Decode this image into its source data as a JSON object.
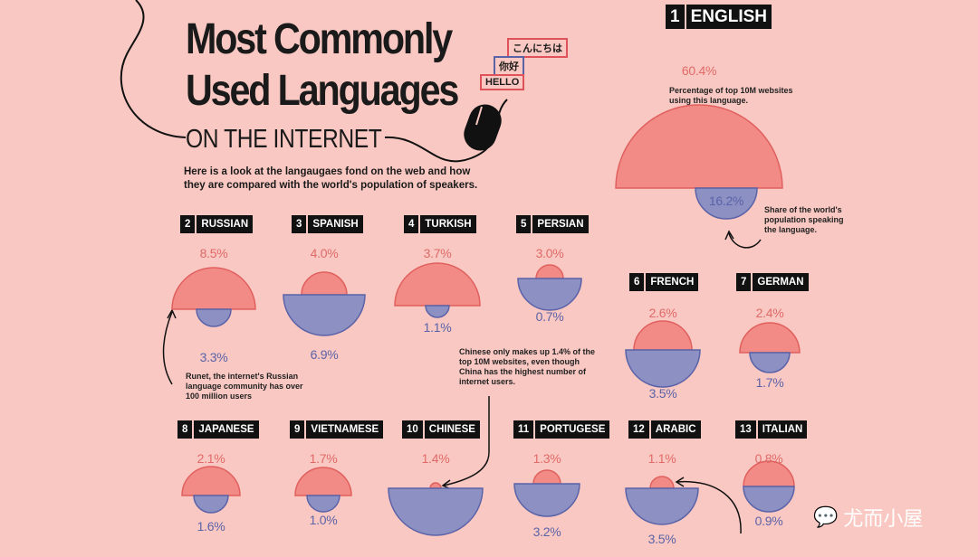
{
  "title": {
    "line1": "Most Commonly",
    "line2": "Used Languages",
    "line3": "ON THE INTERNET"
  },
  "bubbles": [
    "こんにちは",
    "你好",
    "HELLO"
  ],
  "subtitle": "Here is a look at the langaugaes fond on the web and how they are compared with the world's population of speakers.",
  "notes": {
    "english_web": "Percentage of top 10M websites using this language.",
    "english_pop": "Share of the world's population speaking the language.",
    "russian": "Runet, the internet's Russian language community has over 100 million users",
    "chinese": "Chinese only makes up 1.4% of the top 10M websites, even though China has the highest number of internet users."
  },
  "watermark": "尤而小屋",
  "colors": {
    "background": "#f9c8c2",
    "websites": "#f28b86",
    "population": "#8d90c2"
  },
  "chart_data": {
    "type": "paired-semicircle",
    "title": "Most Commonly Used Languages on the Internet",
    "series": [
      {
        "name": "Percentage of top 10M websites using this language",
        "key": "web"
      },
      {
        "name": "Share of the world's population speaking the language",
        "key": "pop"
      }
    ],
    "languages": [
      {
        "rank": "1",
        "name": "ENGLISH",
        "web": 60.4,
        "pop": 16.2,
        "web_label": "60.4%",
        "pop_label": "16.2%"
      },
      {
        "rank": "2",
        "name": "RUSSIAN",
        "web": 8.5,
        "pop": 3.3,
        "web_label": "8.5%",
        "pop_label": "3.3%"
      },
      {
        "rank": "3",
        "name": "SPANISH",
        "web": 4.0,
        "pop": 6.9,
        "web_label": "4.0%",
        "pop_label": "6.9%"
      },
      {
        "rank": "4",
        "name": "TURKISH",
        "web": 3.7,
        "pop": 1.1,
        "web_label": "3.7%",
        "pop_label": "1.1%"
      },
      {
        "rank": "5",
        "name": "PERSIAN",
        "web": 3.0,
        "pop": 0.7,
        "web_label": "3.0%",
        "pop_label": "0.7%"
      },
      {
        "rank": "6",
        "name": "FRENCH",
        "web": 2.6,
        "pop": 3.5,
        "web_label": "2.6%",
        "pop_label": "3.5%"
      },
      {
        "rank": "7",
        "name": "GERMAN",
        "web": 2.4,
        "pop": 1.7,
        "web_label": "2.4%",
        "pop_label": "1.7%"
      },
      {
        "rank": "8",
        "name": "JAPANESE",
        "web": 2.1,
        "pop": 1.6,
        "web_label": "2.1%",
        "pop_label": "1.6%"
      },
      {
        "rank": "9",
        "name": "VIETNAMESE",
        "web": 1.7,
        "pop": 1.0,
        "web_label": "1.7%",
        "pop_label": "1.0%"
      },
      {
        "rank": "10",
        "name": "CHINESE",
        "web": 1.4,
        "pop": null,
        "web_label": "1.4%",
        "pop_label": null
      },
      {
        "rank": "11",
        "name": "PORTUGESE",
        "web": 1.3,
        "pop": 3.2,
        "web_label": "1.3%",
        "pop_label": "3.2%"
      },
      {
        "rank": "12",
        "name": "ARABIC",
        "web": 1.1,
        "pop": 3.5,
        "web_label": "1.1%",
        "pop_label": "3.5%"
      },
      {
        "rank": "13",
        "name": "ITALIAN",
        "web": 0.8,
        "pop": 0.9,
        "web_label": "0.8%",
        "pop_label": "0.9%"
      }
    ]
  }
}
